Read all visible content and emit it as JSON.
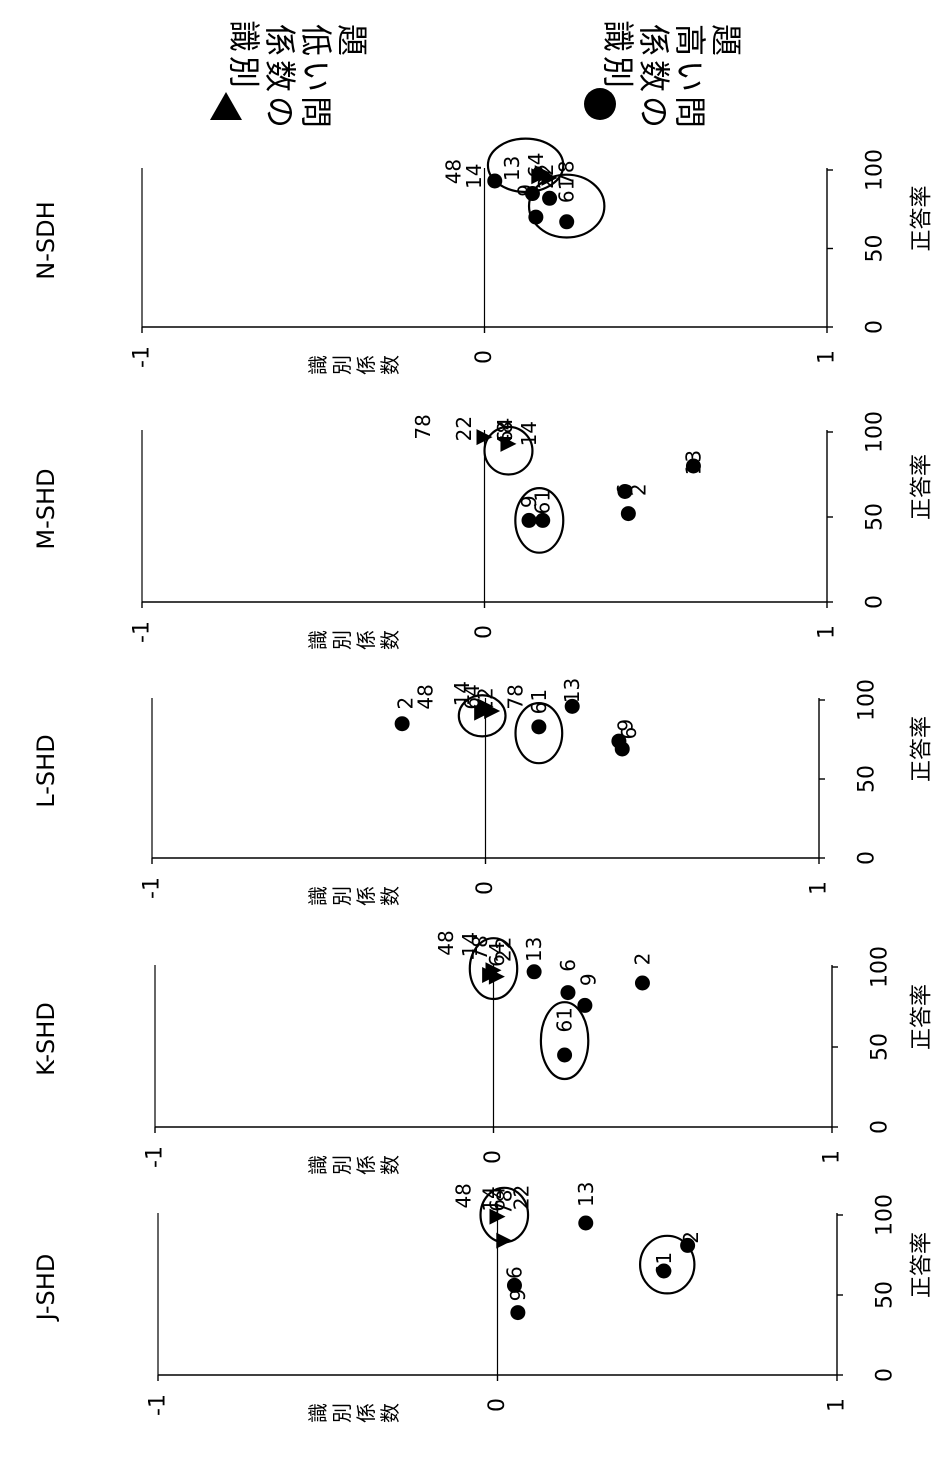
{
  "legend": {
    "low": {
      "marker": "▲",
      "label": "識別係数の低い問題"
    },
    "high": {
      "marker": "●",
      "label": "識別係数の高い問題"
    }
  },
  "chart_data": [
    {
      "type": "scatter",
      "title": "N-SDH",
      "xlabel": "正答率",
      "ylabel": "識別係数",
      "xlim": [
        0,
        100
      ],
      "ylim": [
        -1,
        1
      ],
      "x_ticks": [
        "0",
        "50",
        "100"
      ],
      "y_ticks": [
        "-1",
        "0",
        "1"
      ],
      "series": [
        {
          "marker": "triangle",
          "points": [
            {
              "x": 98,
              "y": 0.17
            },
            {
              "x": 96,
              "y": 0.16
            },
            {
              "x": 95,
              "y": 0.19
            }
          ]
        },
        {
          "marker": "circle",
          "points": [
            {
              "x": 93,
              "y": 0.03
            },
            {
              "x": 85,
              "y": 0.14
            },
            {
              "x": 82,
              "y": 0.19
            },
            {
              "x": 70,
              "y": 0.15
            },
            {
              "x": 67,
              "y": 0.24
            }
          ]
        }
      ],
      "labels": [
        {
          "text": "48",
          "x": 99,
          "y": -0.09
        },
        {
          "text": "14",
          "x": 96,
          "y": -0.03
        },
        {
          "text": "13",
          "x": 101,
          "y": 0.08
        },
        {
          "text": "64",
          "x": 103,
          "y": 0.15
        },
        {
          "text": "22",
          "x": 96,
          "y": 0.18
        },
        {
          "text": "78",
          "x": 98,
          "y": 0.24
        },
        {
          "text": "9",
          "x": 87,
          "y": 0.12
        },
        {
          "text": "61",
          "x": 87,
          "y": 0.24
        }
      ],
      "ellipses": [
        {
          "cx": 103,
          "cy": 0.12,
          "rx": 17,
          "ry": 0.11
        },
        {
          "cx": 77,
          "cy": 0.24,
          "rx": 20,
          "ry": 0.11
        }
      ]
    },
    {
      "type": "scatter",
      "title": "M-SHD",
      "xlabel": "正答率",
      "ylabel": "識別係数",
      "xlim": [
        0,
        100
      ],
      "ylim": [
        -1,
        1
      ],
      "x_ticks": [
        "0",
        "50",
        "100"
      ],
      "y_ticks": [
        "-1",
        "0",
        "1"
      ],
      "series": [
        {
          "marker": "triangle",
          "points": [
            {
              "x": 97,
              "y": 0.0
            },
            {
              "x": 93,
              "y": 0.07
            }
          ]
        },
        {
          "marker": "circle",
          "points": [
            {
              "x": 80,
              "y": 0.61
            },
            {
              "x": 65,
              "y": 0.41
            },
            {
              "x": 52,
              "y": 0.42
            },
            {
              "x": 48,
              "y": 0.13
            },
            {
              "x": 48,
              "y": 0.17
            }
          ]
        }
      ],
      "labels": [
        {
          "text": "78",
          "x": 103,
          "y": -0.18
        },
        {
          "text": "22",
          "x": 102,
          "y": -0.06
        },
        {
          "text": "48",
          "x": 99,
          "y": 0.06
        },
        {
          "text": "64",
          "x": 101,
          "y": 0.06
        },
        {
          "text": "14",
          "x": 99,
          "y": 0.13
        },
        {
          "text": "13",
          "x": 82,
          "y": 0.61
        },
        {
          "text": "2",
          "x": 66,
          "y": 0.45
        },
        {
          "text": "6",
          "x": 66,
          "y": 0.41
        },
        {
          "text": "9",
          "x": 59,
          "y": 0.13
        },
        {
          "text": "61",
          "x": 59,
          "y": 0.17
        }
      ],
      "ellipses": [
        {
          "cx": 89,
          "cy": 0.07,
          "rx": 14,
          "ry": 0.07
        },
        {
          "cx": 48,
          "cy": 0.16,
          "rx": 19,
          "ry": 0.07
        }
      ]
    },
    {
      "type": "scatter",
      "title": "L-SHD",
      "xlabel": "正答率",
      "ylabel": "識別係数",
      "xlim": [
        0,
        100
      ],
      "ylim": [
        -1,
        1
      ],
      "x_ticks": [
        "0",
        "50",
        "100"
      ],
      "y_ticks": [
        "-1",
        "0",
        "1"
      ],
      "series": [
        {
          "marker": "triangle",
          "points": [
            {
              "x": 96,
              "y": 0.0
            },
            {
              "x": 93,
              "y": 0.02
            },
            {
              "x": 92,
              "y": -0.01
            }
          ]
        },
        {
          "marker": "circle",
          "points": [
            {
              "x": 85,
              "y": -0.25
            },
            {
              "x": 96,
              "y": 0.26
            },
            {
              "x": 83,
              "y": 0.16
            },
            {
              "x": 74,
              "y": 0.4
            },
            {
              "x": 69,
              "y": 0.41
            }
          ]
        }
      ],
      "labels": [
        {
          "text": "2",
          "x": 98,
          "y": -0.24
        },
        {
          "text": "48",
          "x": 102,
          "y": -0.18
        },
        {
          "text": "14",
          "x": 104,
          "y": -0.07
        },
        {
          "text": "64",
          "x": 102,
          "y": -0.04
        },
        {
          "text": "22",
          "x": 100,
          "y": 0.0
        },
        {
          "text": "78",
          "x": 102,
          "y": 0.09
        },
        {
          "text": "61",
          "x": 99,
          "y": 0.16
        },
        {
          "text": "13",
          "x": 106,
          "y": 0.26
        },
        {
          "text": "9",
          "x": 84,
          "y": 0.42
        },
        {
          "text": "6",
          "x": 79,
          "y": 0.43
        }
      ],
      "ellipses": [
        {
          "cx": 90,
          "cy": -0.01,
          "rx": 13,
          "ry": 0.07
        },
        {
          "cx": 79,
          "cy": 0.16,
          "rx": 19,
          "ry": 0.07
        }
      ]
    },
    {
      "type": "scatter",
      "title": "K-SHD",
      "xlabel": "正答率",
      "ylabel": "識別係数",
      "xlim": [
        0,
        100
      ],
      "ylim": [
        -1,
        1
      ],
      "x_ticks": [
        "0",
        "50",
        "100"
      ],
      "y_ticks": [
        "-1",
        "0",
        "1"
      ],
      "series": [
        {
          "marker": "triangle",
          "points": [
            {
              "x": 98,
              "y": 0.0
            },
            {
              "x": 95,
              "y": -0.01
            },
            {
              "x": 94,
              "y": 0.01
            }
          ]
        },
        {
          "marker": "circle",
          "points": [
            {
              "x": 97,
              "y": 0.12
            },
            {
              "x": 84,
              "y": 0.22
            },
            {
              "x": 76,
              "y": 0.27
            },
            {
              "x": 90,
              "y": 0.44
            },
            {
              "x": 45,
              "y": 0.21
            }
          ]
        }
      ],
      "labels": [
        {
          "text": "48",
          "x": 115,
          "y": -0.14
        },
        {
          "text": "14",
          "x": 114,
          "y": -0.07
        },
        {
          "text": "78",
          "x": 112,
          "y": -0.04
        },
        {
          "text": "64",
          "x": 108,
          "y": 0.01
        },
        {
          "text": "22",
          "x": 111,
          "y": 0.03
        },
        {
          "text": "13",
          "x": 111,
          "y": 0.12
        },
        {
          "text": "6",
          "x": 101,
          "y": 0.22
        },
        {
          "text": "9",
          "x": 92,
          "y": 0.28
        },
        {
          "text": "2",
          "x": 105,
          "y": 0.44
        },
        {
          "text": "61",
          "x": 67,
          "y": 0.21
        }
      ],
      "ellipses": [
        {
          "cx": 99,
          "cy": 0.0,
          "rx": 19,
          "ry": 0.07
        },
        {
          "cx": 54,
          "cy": 0.21,
          "rx": 24,
          "ry": 0.07
        }
      ]
    },
    {
      "type": "scatter",
      "title": "J-SHD",
      "xlabel": "正答率",
      "ylabel": "識別係数",
      "xlim": [
        0,
        100
      ],
      "ylim": [
        -1,
        1
      ],
      "x_ticks": [
        "0",
        "50",
        "100"
      ],
      "y_ticks": [
        "-1",
        "0",
        "1"
      ],
      "series": [
        {
          "marker": "triangle",
          "points": [
            {
              "x": 99,
              "y": 0.0
            },
            {
              "x": 84,
              "y": 0.02
            }
          ]
        },
        {
          "marker": "circle",
          "points": [
            {
              "x": 95,
              "y": 0.26
            },
            {
              "x": 81,
              "y": 0.56
            },
            {
              "x": 65,
              "y": 0.49
            },
            {
              "x": 56,
              "y": 0.05
            },
            {
              "x": 39,
              "y": 0.06
            }
          ]
        }
      ],
      "labels": [
        {
          "text": "48",
          "x": 112,
          "y": -0.1
        },
        {
          "text": "14",
          "x": 110,
          "y": -0.02
        },
        {
          "text": "64",
          "x": 110,
          "y": 0.0
        },
        {
          "text": "78",
          "x": 108,
          "y": 0.02
        },
        {
          "text": "22",
          "x": 111,
          "y": 0.07
        },
        {
          "text": "13",
          "x": 113,
          "y": 0.26
        },
        {
          "text": "2",
          "x": 86,
          "y": 0.57
        },
        {
          "text": "61",
          "x": 69,
          "y": 0.49
        },
        {
          "text": "6",
          "x": 64,
          "y": 0.05
        },
        {
          "text": "9",
          "x": 50,
          "y": 0.06
        }
      ],
      "ellipses": [
        {
          "cx": 100,
          "cy": 0.02,
          "rx": 17,
          "ry": 0.07
        },
        {
          "cx": 69,
          "cy": 0.5,
          "rx": 18,
          "ry": 0.08
        }
      ]
    }
  ]
}
